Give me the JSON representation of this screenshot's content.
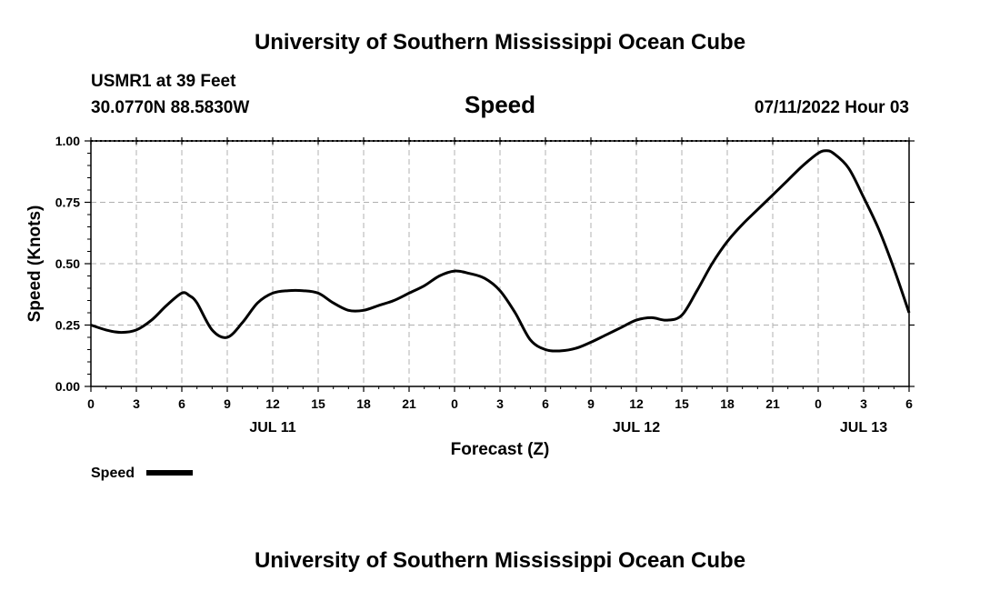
{
  "header": {
    "title": "University of Southern Mississippi Ocean Cube",
    "station": "USMR1 at 39 Feet",
    "coords": "30.0770N  88.5830W",
    "variable": "Speed",
    "datetime": "07/11/2022 Hour 03"
  },
  "footer": {
    "title": "University of Southern Mississippi Ocean Cube"
  },
  "chart_data": {
    "type": "line",
    "title": "Speed",
    "xlabel": "Forecast (Z)",
    "ylabel": "Speed (Knots)",
    "ylim": [
      0,
      1.0
    ],
    "xlim": [
      0,
      54
    ],
    "grid": true,
    "y_ticks": [
      {
        "value": 0.0,
        "label": "0.00"
      },
      {
        "value": 0.25,
        "label": "0.25"
      },
      {
        "value": 0.5,
        "label": "0.50"
      },
      {
        "value": 0.75,
        "label": "0.75"
      },
      {
        "value": 1.0,
        "label": "1.00"
      }
    ],
    "x_ticks": [
      {
        "value": 0,
        "label": "0"
      },
      {
        "value": 3,
        "label": "3"
      },
      {
        "value": 6,
        "label": "6"
      },
      {
        "value": 9,
        "label": "9"
      },
      {
        "value": 12,
        "label": "12"
      },
      {
        "value": 15,
        "label": "15"
      },
      {
        "value": 18,
        "label": "18"
      },
      {
        "value": 21,
        "label": "21"
      },
      {
        "value": 24,
        "label": "0"
      },
      {
        "value": 27,
        "label": "3"
      },
      {
        "value": 30,
        "label": "6"
      },
      {
        "value": 33,
        "label": "9"
      },
      {
        "value": 36,
        "label": "12"
      },
      {
        "value": 39,
        "label": "15"
      },
      {
        "value": 42,
        "label": "18"
      },
      {
        "value": 45,
        "label": "21"
      },
      {
        "value": 48,
        "label": "0"
      },
      {
        "value": 51,
        "label": "3"
      },
      {
        "value": 54,
        "label": "6"
      }
    ],
    "date_labels": [
      {
        "value": 12,
        "label": "JUL 11"
      },
      {
        "value": 36,
        "label": "JUL 12"
      },
      {
        "value": 51,
        "label": "JUL 13"
      }
    ],
    "legend": {
      "label": "Speed",
      "placement": "bottom-left"
    },
    "series": [
      {
        "name": "Speed",
        "color": "#000000",
        "x": [
          0,
          1,
          2,
          3,
          4,
          5,
          6,
          6.5,
          7,
          8,
          9,
          10,
          11,
          12,
          13,
          14,
          15,
          16,
          17,
          18,
          19,
          20,
          21,
          22,
          23,
          24,
          25,
          26,
          27,
          28,
          29,
          30,
          31,
          32,
          33,
          34,
          35,
          36,
          37,
          38,
          39,
          40,
          41,
          42,
          43,
          44,
          45,
          46,
          47,
          48,
          48.5,
          49,
          50,
          51,
          52,
          53,
          54
        ],
        "y": [
          0.25,
          0.23,
          0.22,
          0.23,
          0.27,
          0.33,
          0.38,
          0.37,
          0.34,
          0.23,
          0.2,
          0.26,
          0.34,
          0.38,
          0.39,
          0.39,
          0.38,
          0.34,
          0.31,
          0.31,
          0.33,
          0.35,
          0.38,
          0.41,
          0.45,
          0.47,
          0.46,
          0.44,
          0.39,
          0.3,
          0.19,
          0.15,
          0.145,
          0.155,
          0.18,
          0.21,
          0.24,
          0.27,
          0.28,
          0.27,
          0.29,
          0.39,
          0.5,
          0.59,
          0.66,
          0.72,
          0.78,
          0.84,
          0.9,
          0.95,
          0.96,
          0.95,
          0.89,
          0.77,
          0.64,
          0.48,
          0.3
        ]
      }
    ]
  }
}
